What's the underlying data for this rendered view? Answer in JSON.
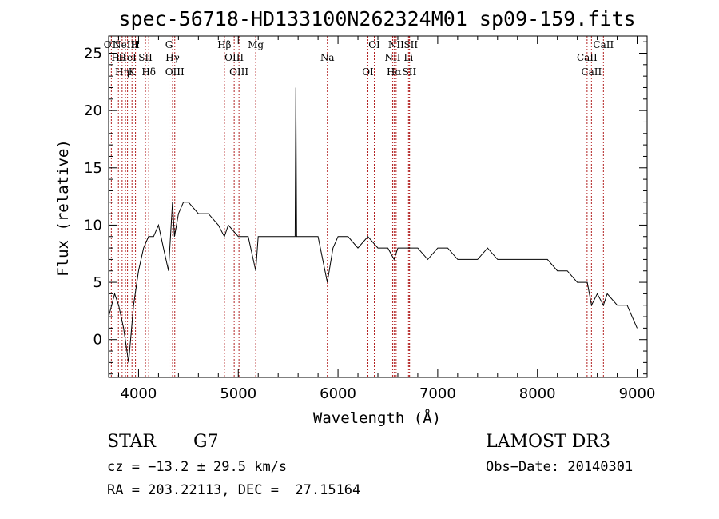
{
  "chart_data": {
    "type": "line",
    "title": "spec-56718-HD133100N262324M01_sp09-159.fits",
    "xlabel": "Wavelength (Å)",
    "ylabel": "Flux (relative)",
    "xlim": [
      3700,
      9100
    ],
    "ylim": [
      -3.3,
      26.5
    ],
    "xticks": [
      4000,
      5000,
      6000,
      7000,
      8000,
      9000
    ],
    "yticks": [
      0,
      5,
      10,
      15,
      20,
      25
    ],
    "series": [
      {
        "name": "spectrum",
        "x": [
          3700,
          3760,
          3800,
          3850,
          3900,
          3950,
          4000,
          4050,
          4100,
          4150,
          4200,
          4250,
          4300,
          4340,
          4360,
          4400,
          4450,
          4500,
          4600,
          4700,
          4800,
          4861,
          4900,
          5000,
          5100,
          5175,
          5200,
          5300,
          5400,
          5500,
          5570,
          5577,
          5585,
          5600,
          5700,
          5800,
          5893,
          5950,
          6000,
          6100,
          6200,
          6300,
          6400,
          6500,
          6563,
          6600,
          6700,
          6800,
          6900,
          7000,
          7100,
          7200,
          7300,
          7400,
          7500,
          7600,
          7700,
          7800,
          7900,
          8000,
          8100,
          8200,
          8300,
          8400,
          8500,
          8542,
          8600,
          8662,
          8700,
          8800,
          8900,
          9000
        ],
        "y": [
          2,
          4,
          3,
          1,
          -2,
          3,
          6,
          8,
          9,
          9,
          10,
          8,
          6,
          12,
          9,
          11,
          12,
          12,
          11,
          11,
          10,
          9,
          10,
          9,
          9,
          6,
          9,
          9,
          9,
          9,
          9,
          22,
          9,
          9,
          9,
          9,
          5,
          8,
          9,
          9,
          8,
          9,
          8,
          8,
          7,
          8,
          8,
          8,
          7,
          8,
          8,
          7,
          7,
          7,
          8,
          7,
          7,
          7,
          7,
          7,
          7,
          6,
          6,
          5,
          5,
          3,
          4,
          3,
          4,
          3,
          3,
          1
        ]
      }
    ],
    "line_markers": [
      {
        "wavelength": 3727,
        "label": "OII"
      },
      {
        "wavelength": 3798,
        "label": "Hθ"
      },
      {
        "wavelength": 3835,
        "label": "Hη"
      },
      {
        "wavelength": 3869,
        "label": "NeIII"
      },
      {
        "wavelength": 3889,
        "label": "HeI"
      },
      {
        "wavelength": 3934,
        "label": "K"
      },
      {
        "wavelength": 3969,
        "label": "H"
      },
      {
        "wavelength": 4069,
        "label": "SII"
      },
      {
        "wavelength": 4102,
        "label": "Hδ"
      },
      {
        "wavelength": 4305,
        "label": "G"
      },
      {
        "wavelength": 4341,
        "label": "Hγ"
      },
      {
        "wavelength": 4363,
        "label": "OIII"
      },
      {
        "wavelength": 4861,
        "label": "Hβ"
      },
      {
        "wavelength": 4959,
        "label": "OIII"
      },
      {
        "wavelength": 5007,
        "label": "OIII"
      },
      {
        "wavelength": 5175,
        "label": "Mg"
      },
      {
        "wavelength": 5893,
        "label": "Na"
      },
      {
        "wavelength": 6300,
        "label": "OI"
      },
      {
        "wavelength": 6364,
        "label": "OI"
      },
      {
        "wavelength": 6548,
        "label": "NII"
      },
      {
        "wavelength": 6563,
        "label": "Hα"
      },
      {
        "wavelength": 6583,
        "label": "NII"
      },
      {
        "wavelength": 6707,
        "label": "Li"
      },
      {
        "wavelength": 6716,
        "label": "SII"
      },
      {
        "wavelength": 6731,
        "label": "SII"
      },
      {
        "wavelength": 8498,
        "label": "CaII"
      },
      {
        "wavelength": 8542,
        "label": "CaII"
      },
      {
        "wavelength": 8662,
        "label": "CaII"
      }
    ]
  },
  "info": {
    "object_class": "STAR",
    "subclass": "G7",
    "survey": "LAMOST DR3",
    "redshift": "cz = −13.2 ± 29.5 km/s",
    "obs_date": "Obs−Date: 20140301",
    "coords": "RA = 203.22113, DEC =  27.15164"
  }
}
